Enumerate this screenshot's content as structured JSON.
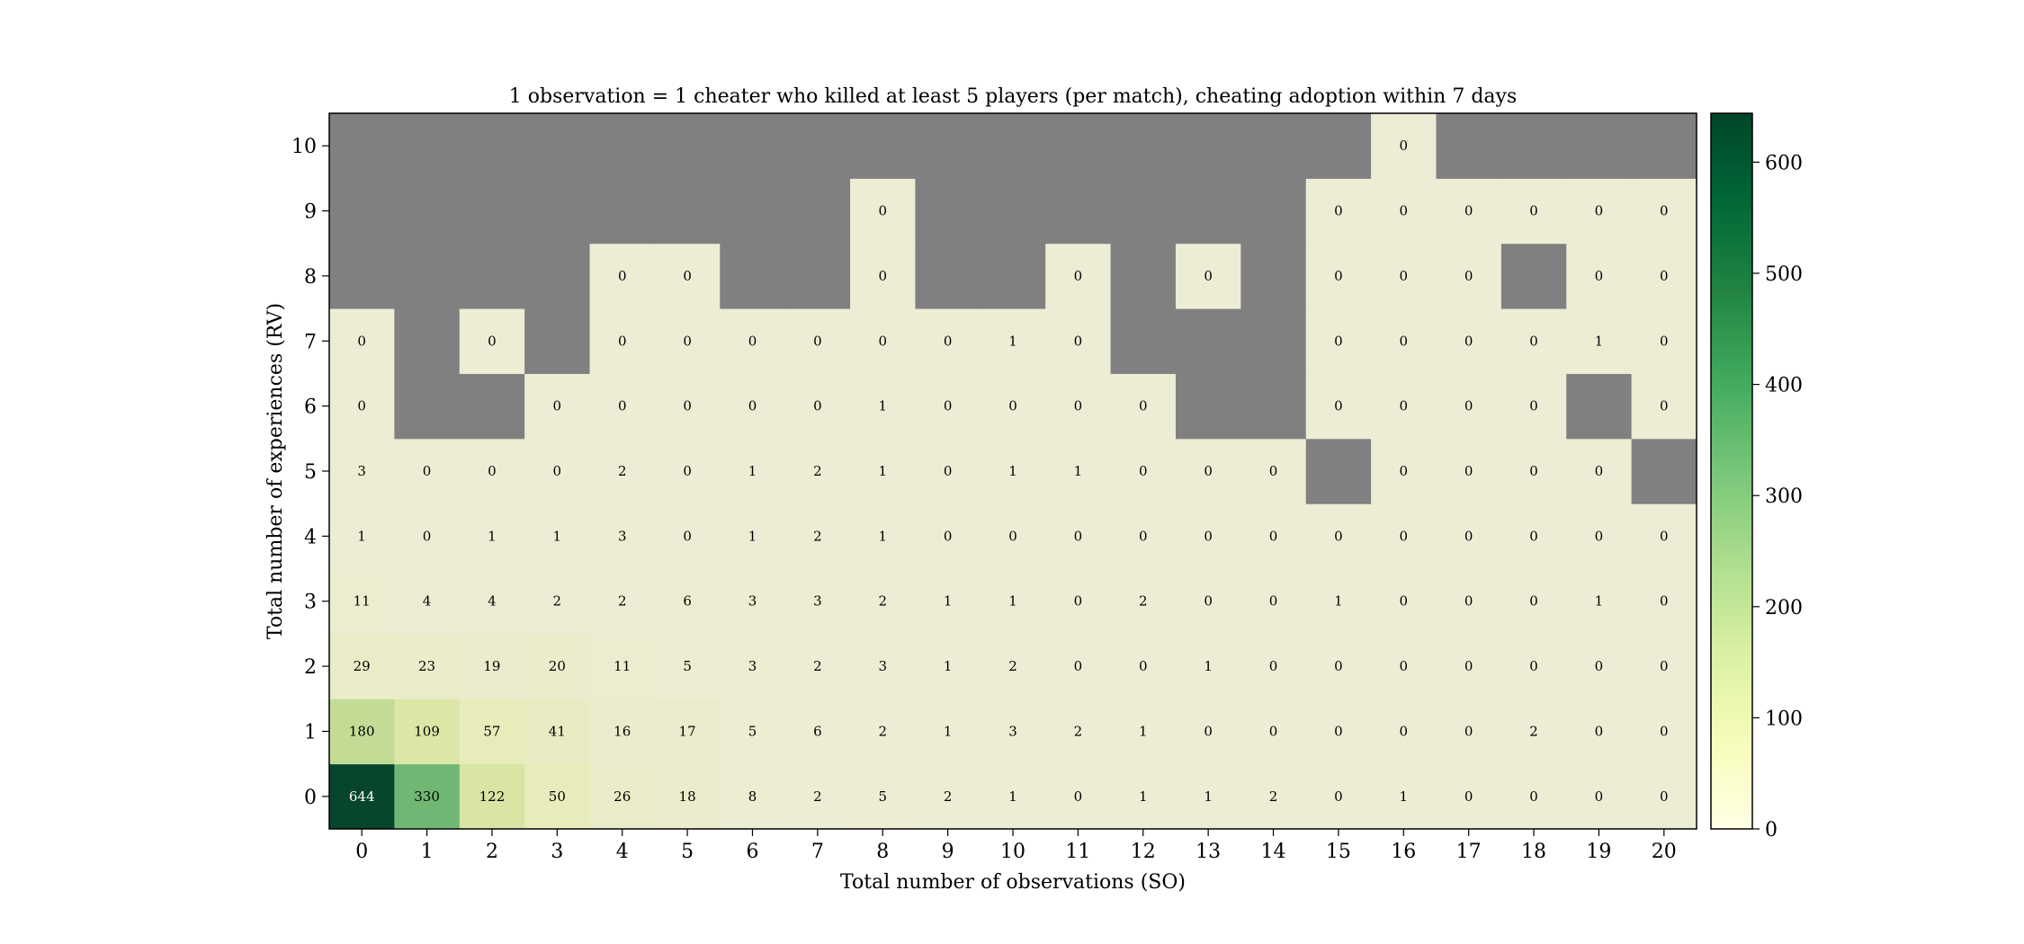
{
  "chart_data": {
    "type": "heatmap",
    "title": "1 observation = 1 cheater who killed at least 5 players (per match), cheating adoption within 7 days",
    "xlabel": "Total number of observations (SO)",
    "ylabel": "Total number of experiences (RV)",
    "x": [
      0,
      1,
      2,
      3,
      4,
      5,
      6,
      7,
      8,
      9,
      10,
      11,
      12,
      13,
      14,
      15,
      16,
      17,
      18,
      19,
      20
    ],
    "y": [
      0,
      1,
      2,
      3,
      4,
      5,
      6,
      7,
      8,
      9,
      10
    ],
    "values": [
      [
        644,
        330,
        122,
        50,
        26,
        18,
        8,
        2,
        5,
        2,
        1,
        0,
        1,
        1,
        2,
        0,
        1,
        0,
        0,
        0,
        0
      ],
      [
        180,
        109,
        57,
        41,
        16,
        17,
        5,
        6,
        2,
        1,
        3,
        2,
        1,
        0,
        0,
        0,
        0,
        0,
        2,
        0,
        0
      ],
      [
        29,
        23,
        19,
        20,
        11,
        5,
        3,
        2,
        3,
        1,
        2,
        0,
        0,
        1,
        0,
        0,
        0,
        0,
        0,
        0,
        0
      ],
      [
        11,
        4,
        4,
        2,
        2,
        6,
        3,
        3,
        2,
        1,
        1,
        0,
        2,
        0,
        0,
        1,
        0,
        0,
        0,
        1,
        0
      ],
      [
        1,
        0,
        1,
        1,
        3,
        0,
        1,
        2,
        1,
        0,
        0,
        0,
        0,
        0,
        0,
        0,
        0,
        0,
        0,
        0,
        0
      ],
      [
        3,
        0,
        0,
        0,
        2,
        0,
        1,
        2,
        1,
        0,
        1,
        1,
        0,
        0,
        0,
        null,
        0,
        0,
        0,
        0,
        null
      ],
      [
        0,
        null,
        null,
        0,
        0,
        0,
        0,
        0,
        1,
        0,
        0,
        0,
        0,
        null,
        null,
        0,
        0,
        0,
        0,
        null,
        0
      ],
      [
        0,
        null,
        0,
        null,
        0,
        0,
        0,
        0,
        0,
        0,
        1,
        0,
        null,
        null,
        null,
        0,
        0,
        0,
        0,
        1,
        0
      ],
      [
        null,
        null,
        null,
        null,
        0,
        0,
        null,
        null,
        0,
        null,
        null,
        0,
        null,
        0,
        null,
        0,
        0,
        0,
        null,
        0,
        0
      ],
      [
        null,
        null,
        null,
        null,
        null,
        null,
        null,
        null,
        0,
        null,
        null,
        null,
        null,
        null,
        null,
        0,
        0,
        0,
        0,
        0,
        0
      ],
      [
        null,
        null,
        null,
        null,
        null,
        null,
        null,
        null,
        null,
        null,
        null,
        null,
        null,
        null,
        null,
        null,
        0,
        null,
        null,
        null,
        null
      ]
    ],
    "missing_color": "#808080",
    "colormap": "YlGn",
    "colorbar": {
      "vmin": 0,
      "vmax": 644,
      "ticks": [
        0,
        100,
        200,
        300,
        400,
        500,
        600
      ]
    },
    "grid": false
  }
}
